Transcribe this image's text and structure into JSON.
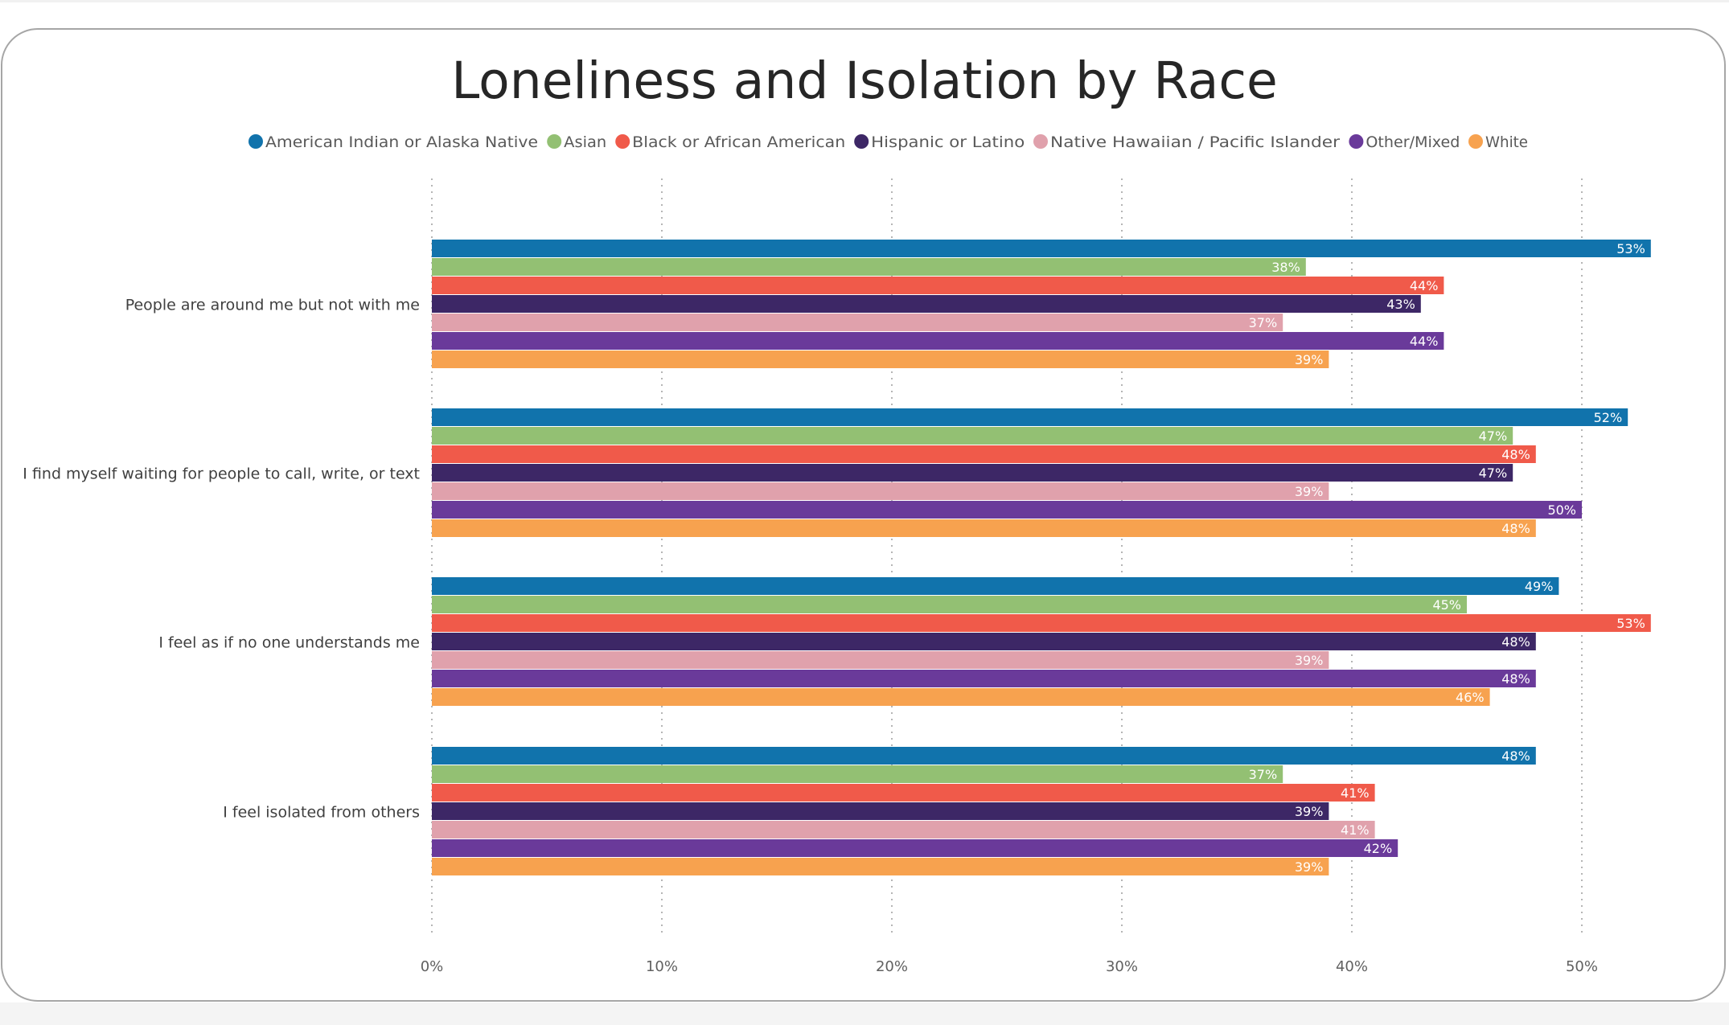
{
  "chart_data": {
    "type": "bar",
    "orientation": "horizontal",
    "title": "Loneliness and Isolation by Race",
    "categories": [
      "People are around me but not with me",
      "I find myself waiting for people to call, write, or text",
      "I feel as if no one understands me",
      "I feel isolated from others"
    ],
    "series": [
      {
        "name": "American Indian or Alaska Native",
        "color": "#1173ac",
        "values": [
          53,
          52,
          49,
          48
        ]
      },
      {
        "name": "Asian",
        "color": "#93c073",
        "values": [
          38,
          47,
          45,
          37
        ]
      },
      {
        "name": "Black or African American",
        "color": "#f05a4a",
        "values": [
          44,
          48,
          53,
          41
        ]
      },
      {
        "name": "Hispanic or Latino",
        "color": "#3d2766",
        "values": [
          43,
          47,
          48,
          39
        ]
      },
      {
        "name": "Native Hawaiian / Pacific Islander",
        "color": "#e0a1ac",
        "values": [
          37,
          39,
          39,
          41
        ]
      },
      {
        "name": "Other/Mixed",
        "color": "#6a3a9a",
        "values": [
          44,
          50,
          48,
          42
        ]
      },
      {
        "name": "White",
        "color": "#f7a24f",
        "values": [
          39,
          48,
          46,
          39
        ]
      }
    ],
    "value_labels": [
      [
        "53%",
        "52%",
        "49%",
        "48%"
      ],
      [
        "38%",
        "47%",
        "45%",
        "37%"
      ],
      [
        "44%",
        "48%",
        "53%",
        "41%"
      ],
      [
        "43%",
        "47%",
        "48%",
        "39%"
      ],
      [
        "37%",
        "39%",
        "39%",
        "41%"
      ],
      [
        "44%",
        "50%",
        "48%",
        "42%"
      ],
      [
        "39%",
        "48%",
        "46%",
        "39%"
      ]
    ],
    "x_ticks": [
      "0%",
      "10%",
      "20%",
      "30%",
      "40%",
      "50%"
    ],
    "xlim": [
      0,
      54.3
    ],
    "xlabel": "",
    "ylabel": "",
    "grid": "vertical dotted",
    "legend_position": "top"
  }
}
